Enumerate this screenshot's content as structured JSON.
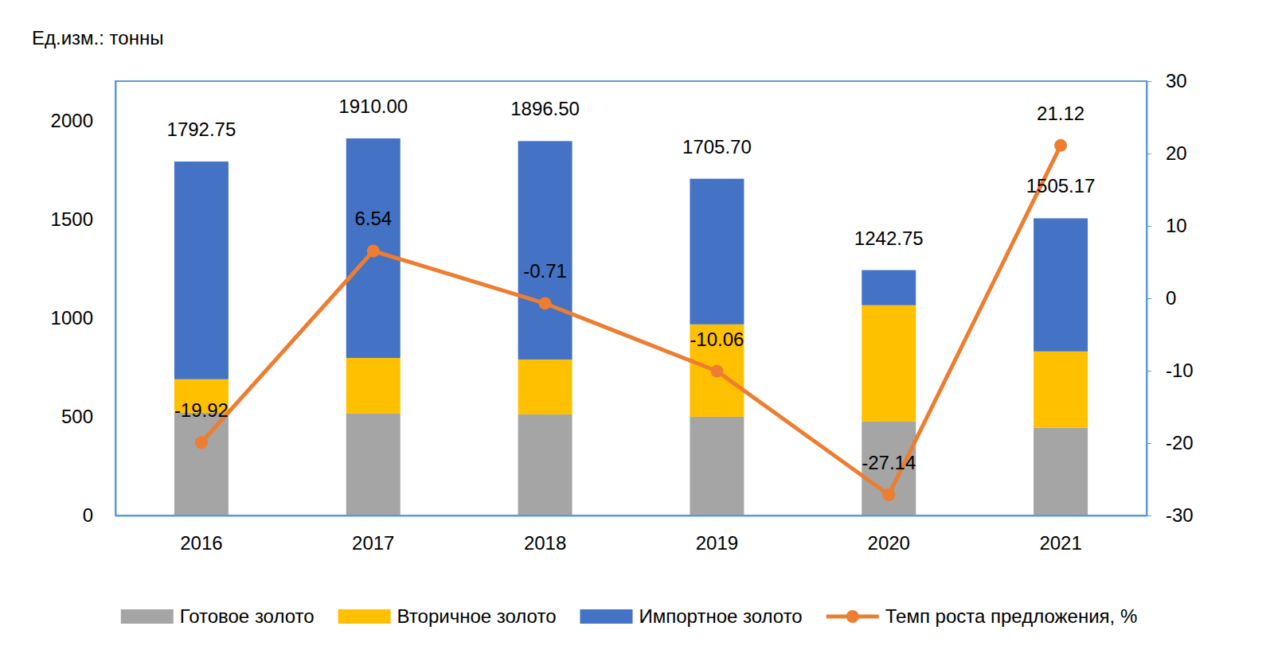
{
  "chart_data": {
    "type": "bar",
    "ylabel": "Ед.изм.: тонны",
    "stacked": true,
    "grid": false,
    "legend": "bottom",
    "categories": [
      "2016",
      "2017",
      "2018",
      "2019",
      "2020",
      "2021"
    ],
    "series": [
      {
        "name": "Готовое золото",
        "type": "bar",
        "color": "#a5a5a5",
        "values": [
          520,
          516,
          512,
          500,
          476,
          444
        ]
      },
      {
        "name": "Вторичное золото",
        "type": "bar",
        "color": "#ffc000",
        "values": [
          170,
          282,
          278,
          468,
          589,
          387
        ]
      },
      {
        "name": "Импортное золото",
        "type": "bar",
        "color": "#4472c4",
        "values": [
          1102.75,
          1112,
          1106.5,
          737.7,
          177.75,
          674.17
        ]
      },
      {
        "name": "Темп роста предложения, %",
        "type": "line",
        "axis": "y2",
        "color": "#ed7d31",
        "marker": "circle",
        "data_labels": true,
        "values": [
          -19.92,
          6.54,
          -0.71,
          -10.06,
          -27.14,
          21.12
        ]
      }
    ],
    "total_labels": [
      "1792.75",
      "1910.00",
      "1896.50",
      "1705.70",
      "1242.75",
      "1505.17"
    ],
    "ylim": [
      0,
      2200
    ],
    "yticks": [
      0,
      500,
      1000,
      1500,
      2000
    ],
    "y2lim": [
      -30,
      30
    ],
    "y2ticks": [
      -30,
      -20,
      -10,
      0,
      10,
      20,
      30
    ]
  }
}
